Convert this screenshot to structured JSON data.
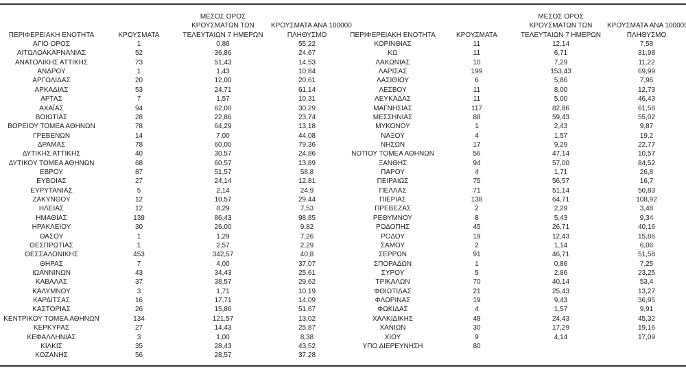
{
  "headers": {
    "region": "ΠΕΡΙΦΕΡΕΙΑΚΗ ΕΝΟΤΗΤΑ",
    "cases": "ΚΡΟΥΣΜΑΤΑ",
    "avg_line1": "ΜΕΣΟΣ ΟΡΟΣ",
    "avg_line2": "ΚΡΟΥΣΜΑΤΩΝ ΤΩΝ",
    "avg_line3": "ΤΕΛΕΥΤΑΙΩΝ 7 ΗΜΕΡΩΝ",
    "per100k_line1": "ΚΡΟΥΣΜΑΤΑ ΑΝΑ 100000",
    "per100k_line2": "ΠΛΗΘΥΣΜΟ"
  },
  "left_rows": [
    [
      "ΑΓΙΟ ΟΡΟΣ",
      "1",
      "0,86",
      "55,22"
    ],
    [
      "ΑΙΤΩΛΟΑΚΑΡΝΑΝΙΑΣ",
      "52",
      "36,86",
      "24,67"
    ],
    [
      "ΑΝΑΤΟΛΙΚΗΣ ΑΤΤΙΚΗΣ",
      "73",
      "51,43",
      "14,53"
    ],
    [
      "ΑΝΔΡΟΥ",
      "1",
      "1,43",
      "10,84"
    ],
    [
      "ΑΡΓΟΛΙΔΑΣ",
      "20",
      "12,00",
      "20,61"
    ],
    [
      "ΑΡΚΑΔΙΑΣ",
      "53",
      "24,71",
      "61,14"
    ],
    [
      "ΑΡΤΑΣ",
      "7",
      "1,57",
      "10,31"
    ],
    [
      "ΑΧΑΪΑΣ",
      "94",
      "62,00",
      "30,29"
    ],
    [
      "ΒΟΙΩΤΙΑΣ",
      "28",
      "22,86",
      "23,74"
    ],
    [
      "ΒΟΡΕΙΟΥ ΤΟΜΕΑ ΑΘΗΝΩΝ",
      "78",
      "64,29",
      "13,18"
    ],
    [
      "ΓΡΕΒΕΝΩΝ",
      "14",
      "7,00",
      "44,08"
    ],
    [
      "ΔΡΑΜΑΣ",
      "78",
      "60,00",
      "79,36"
    ],
    [
      "ΔΥΤΙΚΗΣ ΑΤΤΙΚΗΣ",
      "40",
      "30,57",
      "24,86"
    ],
    [
      "ΔΥΤΙΚΟΥ ΤΟΜΕΑ ΑΘΗΝΩΝ",
      "68",
      "60,57",
      "13,89"
    ],
    [
      "ΕΒΡΟΥ",
      "87",
      "51,57",
      "58,8"
    ],
    [
      "ΕΥΒΟΙΑΣ",
      "27",
      "24,14",
      "12,81"
    ],
    [
      "ΕΥΡΥΤΑΝΙΑΣ",
      "5",
      "2,14",
      "24,9"
    ],
    [
      "ΖΑΚΥΝΘΟΥ",
      "12",
      "10,57",
      "29,44"
    ],
    [
      "ΗΛΕΙΑΣ",
      "12",
      "8,29",
      "7,53"
    ],
    [
      "ΗΜΑΘΙΑΣ",
      "139",
      "86,43",
      "98,85"
    ],
    [
      "ΗΡΑΚΛΕΙΟΥ",
      "30",
      "26,00",
      "9,82"
    ],
    [
      "ΘΑΣΟΥ",
      "1",
      "1,29",
      "7,26"
    ],
    [
      "ΘΕΣΠΡΩΤΙΑΣ",
      "1",
      "2,57",
      "2,29"
    ],
    [
      "ΘΕΣΣΑΛΟΝΙΚΗΣ",
      "453",
      "342,57",
      "40,8"
    ],
    [
      "ΘΗΡΑΣ",
      "7",
      "4,00",
      "37,07"
    ],
    [
      "ΙΩΑΝΝΙΝΩΝ",
      "43",
      "34,43",
      "25,61"
    ],
    [
      "ΚΑΒΑΛΑΣ",
      "37",
      "38,57",
      "29,62"
    ],
    [
      "ΚΑΛΥΜΝΟΥ",
      "3",
      "1,71",
      "10,19"
    ],
    [
      "ΚΑΡΔΙΤΣΑΣ",
      "16",
      "17,71",
      "14,09"
    ],
    [
      "ΚΑΣΤΟΡΙΑΣ",
      "26",
      "15,86",
      "51,67"
    ],
    [
      "ΚΕΝΤΡΙΚΟΥ ΤΟΜΕΑ ΑΘΗΝΩΝ",
      "134",
      "121,57",
      "13,02"
    ],
    [
      "ΚΕΡΚΥΡΑΣ",
      "27",
      "14,43",
      "25,87"
    ],
    [
      "ΚΕΦΑΛΛΗΝΙΑΣ",
      "3",
      "1,00",
      "8,38"
    ],
    [
      "ΚΙΛΚΙΣ",
      "35",
      "28,43",
      "43,52"
    ],
    [
      "ΚΟΖΑΝΗΣ",
      "56",
      "28,57",
      "37,28"
    ]
  ],
  "right_rows": [
    [
      "ΚΟΡΙΝΘΙΑΣ",
      "11",
      "12,14",
      "7,58"
    ],
    [
      "ΚΩ",
      "11",
      "6,71",
      "31,98"
    ],
    [
      "ΛΑΚΩΝΙΑΣ",
      "10",
      "7,29",
      "11,22"
    ],
    [
      "ΛΑΡΙΣΑΣ",
      "199",
      "153,43",
      "69,99"
    ],
    [
      "ΛΑΣΙΘΙΟΥ",
      "6",
      "5,86",
      "7,96"
    ],
    [
      "ΛΕΣΒΟΥ",
      "11",
      "8,00",
      "12,73"
    ],
    [
      "ΛΕΥΚΑΔΑΣ",
      "11",
      "5,00",
      "46,43"
    ],
    [
      "ΜΑΓΝΗΣΙΑΣ",
      "117",
      "82,86",
      "61,58"
    ],
    [
      "ΜΕΣΣΗΝΙΑΣ",
      "88",
      "59,43",
      "55,02"
    ],
    [
      "ΜΥΚΟΝΟΥ",
      "1",
      "2,43",
      "9,87"
    ],
    [
      "ΝΑΞΟΥ",
      "4",
      "1,57",
      "19,2"
    ],
    [
      "ΝΗΣΩΝ",
      "17",
      "9,29",
      "22,77"
    ],
    [
      "ΝΟΤΙΟΥ ΤΟΜΕΑ ΑΘΗΝΩΝ",
      "56",
      "47,14",
      "10,57"
    ],
    [
      "ΞΑΝΘΗΣ",
      "94",
      "57,00",
      "84,52"
    ],
    [
      "ΠΑΡΟΥ",
      "4",
      "1,71",
      "26,8"
    ],
    [
      "ΠΕΙΡΑΙΩΣ",
      "75",
      "56,57",
      "16,7"
    ],
    [
      "ΠΕΛΛΑΣ",
      "71",
      "51,14",
      "50,83"
    ],
    [
      "ΠΙΕΡΙΑΣ",
      "138",
      "64,71",
      "108,92"
    ],
    [
      "ΠΡΕΒΕΖΑΣ",
      "2",
      "2,29",
      "3,48"
    ],
    [
      "ΡΕΘΥΜΝΟΥ",
      "8",
      "5,43",
      "9,34"
    ],
    [
      "ΡΟΔΟΠΗΣ",
      "45",
      "26,71",
      "40,16"
    ],
    [
      "ΡΟΔΟΥ",
      "19",
      "12,43",
      "15,86"
    ],
    [
      "ΣΑΜΟΥ",
      "2",
      "1,14",
      "6,06"
    ],
    [
      "ΣΕΡΡΩΝ",
      "91",
      "46,71",
      "51,58"
    ],
    [
      "ΣΠΟΡΑΔΩΝ",
      "1",
      "0,86",
      "7,25"
    ],
    [
      "ΣΥΡΟΥ",
      "5",
      "2,86",
      "23,25"
    ],
    [
      "ΤΡΙΚΑΛΩΝ",
      "70",
      "40,14",
      "53,4"
    ],
    [
      "ΦΘΙΩΤΙΔΑΣ",
      "21",
      "25,43",
      "13,27"
    ],
    [
      "ΦΛΩΡΙΝΑΣ",
      "19",
      "9,43",
      "36,95"
    ],
    [
      "ΦΩΚΙΔΑΣ",
      "4",
      "1,57",
      "9,91"
    ],
    [
      "ΧΑΛΚΙΔΙΚΗΣ",
      "48",
      "24,43",
      "45,32"
    ],
    [
      "ΧΑΝΙΩΝ",
      "30",
      "17,29",
      "19,16"
    ],
    [
      "ΧΙΟΥ",
      "9",
      "4,14",
      "17,09"
    ],
    [
      "ΥΠΟ ΔΙΕΡΕΥΝΗΣΗ",
      "80",
      "",
      ""
    ]
  ]
}
